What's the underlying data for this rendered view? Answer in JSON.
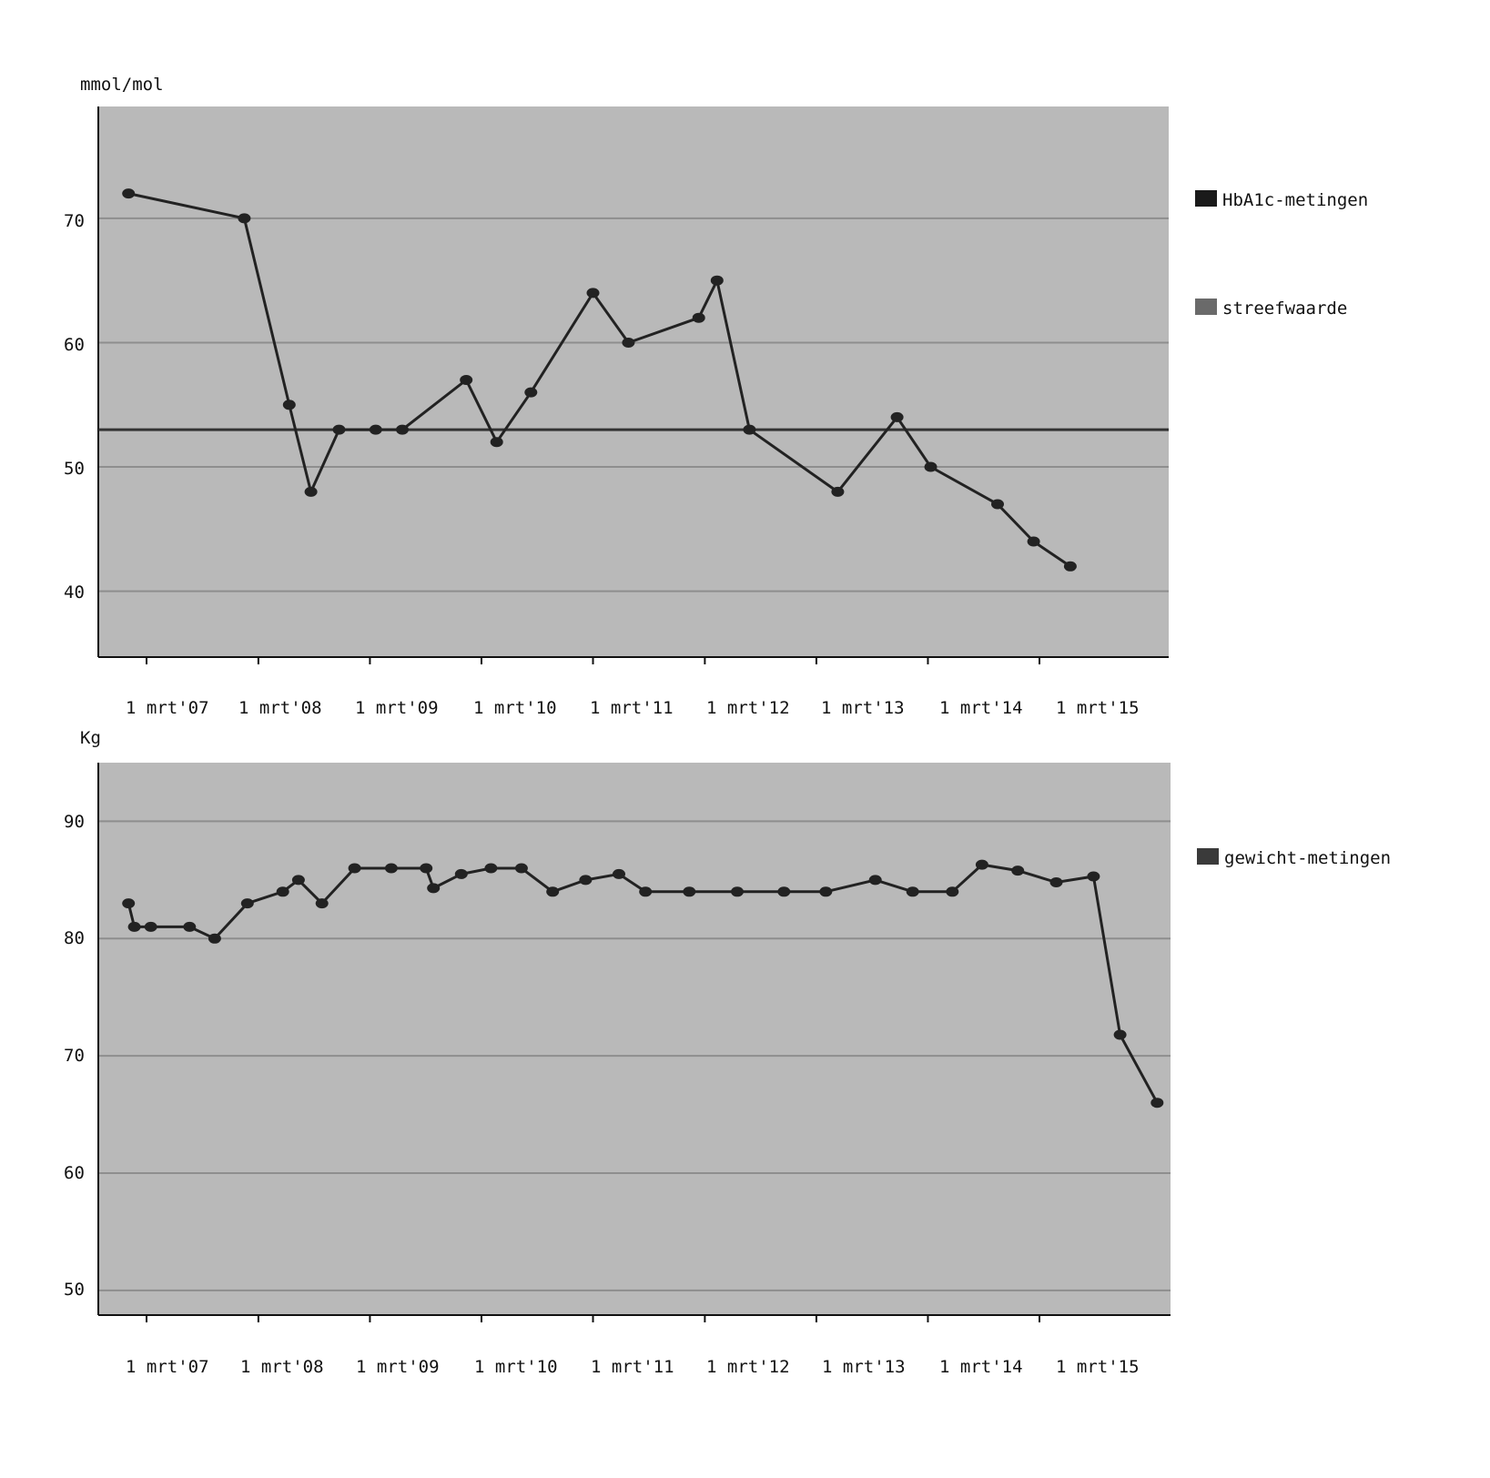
{
  "colors": {
    "plot_background": "#b9b9b9",
    "gridline": "#8e8e8e",
    "axis": "#111111",
    "series_line": "#222222",
    "target_line": "#333333",
    "legend_hba1c": "#1a1a1a",
    "legend_target": "#6a6a6a",
    "legend_weight": "#3a3a3a"
  },
  "chart_data": [
    {
      "type": "line",
      "title": "",
      "xlabel": "",
      "ylabel": "mmol/mol",
      "ylim": [
        34.7,
        79
      ],
      "xlim": [
        "2006-11-01",
        "2015-12-15"
      ],
      "x_ticks": [
        "2007-03-01",
        "2008-03-01",
        "2009-03-01",
        "2010-03-01",
        "2011-03-01",
        "2012-03-01",
        "2013-03-01",
        "2014-03-01",
        "2015-03-01"
      ],
      "x_tick_labels": [
        "1 mrt'07",
        "1 mrt'08",
        "1 mrt'09",
        "1 mrt'10",
        "1 mrt'11",
        "1 mrt'12",
        "1 mrt'13",
        "1 mrt'14",
        "1 mrt'15"
      ],
      "y_ticks": [
        40,
        50,
        60,
        70
      ],
      "y_tick_labels": [
        "40",
        "50",
        "60",
        "70"
      ],
      "grid": true,
      "legend_position": "right",
      "legend": [
        "HbA1c-metingen",
        "streefwaarde"
      ],
      "series": [
        {
          "name": "HbA1c-metingen",
          "points": [
            {
              "x": "2007-01-01",
              "y": 72
            },
            {
              "x": "2008-01-15",
              "y": 70
            },
            {
              "x": "2008-06-10",
              "y": 55
            },
            {
              "x": "2008-08-20",
              "y": 48
            },
            {
              "x": "2008-11-20",
              "y": 53
            },
            {
              "x": "2009-03-20",
              "y": 53
            },
            {
              "x": "2009-06-15",
              "y": 53
            },
            {
              "x": "2010-01-10",
              "y": 57
            },
            {
              "x": "2010-04-20",
              "y": 52
            },
            {
              "x": "2010-08-10",
              "y": 56
            },
            {
              "x": "2011-03-01",
              "y": 64
            },
            {
              "x": "2011-06-25",
              "y": 60
            },
            {
              "x": "2012-02-10",
              "y": 62
            },
            {
              "x": "2012-04-10",
              "y": 65
            },
            {
              "x": "2012-07-25",
              "y": 53
            },
            {
              "x": "2013-05-10",
              "y": 48
            },
            {
              "x": "2013-11-20",
              "y": 54
            },
            {
              "x": "2014-03-10",
              "y": 50
            },
            {
              "x": "2014-10-15",
              "y": 47
            },
            {
              "x": "2015-02-10",
              "y": 44
            },
            {
              "x": "2015-06-10",
              "y": 42
            }
          ]
        },
        {
          "name": "streefwaarde",
          "constant": 53
        }
      ]
    },
    {
      "type": "line",
      "title": "",
      "xlabel": "",
      "ylabel": "Kg",
      "ylim": [
        47.9,
        95
      ],
      "xlim": [
        "2006-11-01",
        "2015-12-15"
      ],
      "x_ticks": [
        "2007-03-01",
        "2008-03-01",
        "2009-03-01",
        "2010-03-01",
        "2011-03-01",
        "2012-03-01",
        "2013-03-01",
        "2014-03-01",
        "2015-03-01"
      ],
      "x_tick_labels": [
        "1 mrt'07",
        "1 mrt'08",
        "1 mrt'09",
        "1 mrt'10",
        "1 mrt'11",
        "1 mrt'12",
        "1 mrt'13",
        "1 mrt'14",
        "1 mrt'15"
      ],
      "y_ticks": [
        50,
        60,
        70,
        80,
        90
      ],
      "y_tick_labels": [
        "50",
        "60",
        "70",
        "80",
        "90"
      ],
      "grid": true,
      "legend_position": "right",
      "legend": [
        "gewicht-metingen"
      ],
      "series": [
        {
          "name": "gewicht-metingen",
          "points": [
            {
              "x": "2007-01-01",
              "y": 83
            },
            {
              "x": "2007-01-20",
              "y": 81
            },
            {
              "x": "2007-03-15",
              "y": 81
            },
            {
              "x": "2007-07-20",
              "y": 81
            },
            {
              "x": "2007-10-10",
              "y": 80
            },
            {
              "x": "2008-01-25",
              "y": 83
            },
            {
              "x": "2008-05-20",
              "y": 84
            },
            {
              "x": "2008-07-10",
              "y": 85
            },
            {
              "x": "2008-09-25",
              "y": 83
            },
            {
              "x": "2009-01-10",
              "y": 86
            },
            {
              "x": "2009-05-10",
              "y": 86
            },
            {
              "x": "2009-09-01",
              "y": 86
            },
            {
              "x": "2009-09-25",
              "y": 84.3
            },
            {
              "x": "2009-12-25",
              "y": 85.5
            },
            {
              "x": "2010-04-01",
              "y": 86
            },
            {
              "x": "2010-07-10",
              "y": 86
            },
            {
              "x": "2010-10-20",
              "y": 84
            },
            {
              "x": "2011-02-05",
              "y": 85
            },
            {
              "x": "2011-05-25",
              "y": 85.5
            },
            {
              "x": "2011-08-20",
              "y": 84
            },
            {
              "x": "2012-01-10",
              "y": 84
            },
            {
              "x": "2012-06-15",
              "y": 84
            },
            {
              "x": "2012-11-15",
              "y": 84
            },
            {
              "x": "2013-04-01",
              "y": 84
            },
            {
              "x": "2013-09-10",
              "y": 85
            },
            {
              "x": "2014-01-10",
              "y": 84
            },
            {
              "x": "2014-05-20",
              "y": 84
            },
            {
              "x": "2014-08-25",
              "y": 86.3
            },
            {
              "x": "2014-12-20",
              "y": 85.8
            },
            {
              "x": "2015-04-25",
              "y": 84.8
            },
            {
              "x": "2015-08-25",
              "y": 85.3
            },
            {
              "x": "2015-11-20",
              "y": 71.8
            },
            {
              "x": "2016-03-20",
              "y": 66
            }
          ]
        }
      ]
    }
  ]
}
